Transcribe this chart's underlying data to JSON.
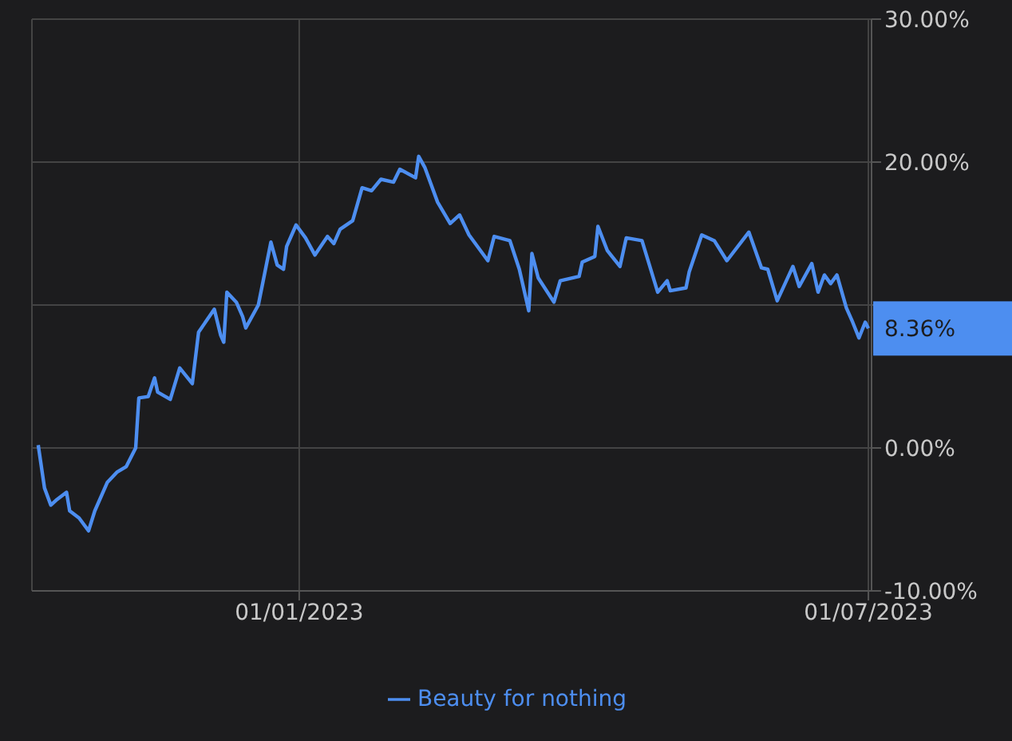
{
  "chart_data": {
    "type": "line",
    "x": [
      "2022-10-10",
      "2022-10-12",
      "2022-10-14",
      "2022-10-16",
      "2022-10-19",
      "2022-10-20",
      "2022-10-23",
      "2022-10-26",
      "2022-10-28",
      "2022-11-01",
      "2022-11-04",
      "2022-11-07",
      "2022-11-10",
      "2022-11-11",
      "2022-11-14",
      "2022-11-16",
      "2022-11-17",
      "2022-11-21",
      "2022-11-24",
      "2022-11-28",
      "2022-11-30",
      "2022-12-05",
      "2022-12-07",
      "2022-12-08",
      "2022-12-09",
      "2022-12-12",
      "2022-12-14",
      "2022-12-15",
      "2022-12-19",
      "2022-12-23",
      "2022-12-25",
      "2022-12-27",
      "2022-12-28",
      "2022-12-31",
      "2023-01-03",
      "2023-01-06",
      "2023-01-10",
      "2023-01-12",
      "2023-01-14",
      "2023-01-18",
      "2023-01-21",
      "2023-01-24",
      "2023-01-27",
      "2023-01-31",
      "2023-02-02",
      "2023-02-07",
      "2023-02-08",
      "2023-02-10",
      "2023-02-14",
      "2023-02-18",
      "2023-02-21",
      "2023-02-24",
      "2023-03-02",
      "2023-03-04",
      "2023-03-09",
      "2023-03-12",
      "2023-03-15",
      "2023-03-16",
      "2023-03-18",
      "2023-03-23",
      "2023-03-25",
      "2023-03-31",
      "2023-04-01",
      "2023-04-05",
      "2023-04-06",
      "2023-04-09",
      "2023-04-13",
      "2023-04-15",
      "2023-04-20",
      "2023-04-25",
      "2023-04-28",
      "2023-04-29",
      "2023-05-04",
      "2023-05-05",
      "2023-05-09",
      "2023-05-13",
      "2023-05-17",
      "2023-05-24",
      "2023-05-28",
      "2023-05-30",
      "2023-06-02",
      "2023-06-07",
      "2023-06-09",
      "2023-06-13",
      "2023-06-15",
      "2023-06-17",
      "2023-06-19",
      "2023-06-21",
      "2023-06-24",
      "2023-06-26",
      "2023-06-28",
      "2023-06-30",
      "2023-07-01"
    ],
    "series": [
      {
        "name": "Beauty for nothing",
        "color": "#4d8ef0",
        "values": [
          0.2,
          -2.8,
          -4.0,
          -3.6,
          -3.1,
          -4.4,
          -4.9,
          -5.8,
          -4.4,
          -2.4,
          -1.7,
          -1.3,
          0.0,
          3.5,
          3.6,
          4.9,
          3.9,
          3.4,
          5.6,
          4.5,
          8.1,
          9.7,
          7.9,
          7.4,
          10.9,
          10.2,
          9.2,
          8.4,
          10.0,
          14.4,
          12.8,
          12.5,
          14.1,
          15.6,
          14.7,
          13.5,
          14.8,
          14.3,
          15.3,
          15.9,
          18.2,
          18.0,
          18.8,
          18.6,
          19.5,
          18.9,
          20.4,
          19.6,
          17.2,
          15.7,
          16.3,
          14.9,
          13.1,
          14.8,
          14.5,
          12.5,
          9.6,
          13.6,
          11.9,
          10.2,
          11.7,
          12.0,
          13.0,
          13.4,
          15.5,
          13.8,
          12.7,
          14.7,
          14.5,
          10.9,
          11.7,
          11.0,
          11.2,
          12.3,
          14.9,
          14.5,
          13.1,
          15.1,
          12.6,
          12.5,
          10.3,
          12.7,
          11.3,
          12.9,
          10.9,
          12.1,
          11.5,
          12.1,
          9.8,
          8.8,
          7.7,
          8.8,
          8.36
        ]
      }
    ],
    "xlim": [
      "2022-10-08",
      "2023-07-02"
    ],
    "xticks": [
      {
        "value": "2023-01-01",
        "label": "01/01/2023"
      },
      {
        "value": "2023-07-01",
        "label": "01/07/2023"
      }
    ],
    "ylim": [
      -10,
      30
    ],
    "yticks": [
      {
        "value": -10,
        "label": "-10.00%"
      },
      {
        "value": 0,
        "label": "0.00%"
      },
      {
        "value": 10,
        "label": null
      },
      {
        "value": 20,
        "label": "20.00%"
      },
      {
        "value": 30,
        "label": "30.00%"
      }
    ],
    "annotations": [
      {
        "text": "8.36%",
        "x": "2023-07-01",
        "y": 8.36
      }
    ],
    "grid": true,
    "legend": "bottom",
    "marker": "none",
    "line_style": "solid"
  }
}
